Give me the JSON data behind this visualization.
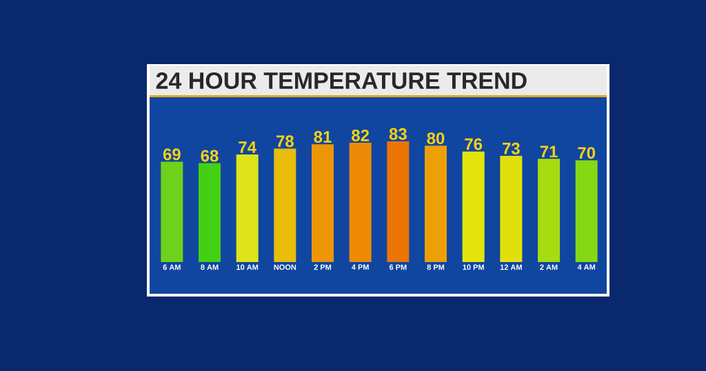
{
  "chart_data": {
    "type": "bar",
    "title": "24 HOUR TEMPERATURE TREND",
    "categories": [
      "6 AM",
      "8 AM",
      "10 AM",
      "NOON",
      "2 PM",
      "4 PM",
      "6 PM",
      "8 PM",
      "10 PM",
      "12 AM",
      "2 AM",
      "4 AM"
    ],
    "values": [
      69,
      68,
      74,
      78,
      81,
      82,
      83,
      80,
      76,
      73,
      71,
      70
    ],
    "colors": [
      "#6fd21a",
      "#44d012",
      "#dde41a",
      "#e8bd0c",
      "#ec9608",
      "#ee8a06",
      "#ec7404",
      "#eca006",
      "#e4e40a",
      "#e2e00c",
      "#a6dc10",
      "#86d814"
    ],
    "data_labels": true
  }
}
